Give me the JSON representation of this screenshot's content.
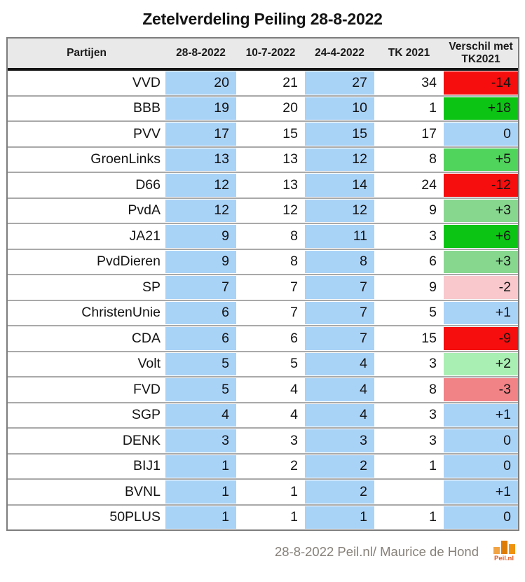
{
  "title": "Zetelverdeling Peiling 28-8-2022",
  "colors": {
    "highlight_blue": "#a9d2f7",
    "header_bg": "#e9e9e9",
    "strong_red": "#f60d0d",
    "strong_green": "#0cc414"
  },
  "table": {
    "headers": [
      "Partijen",
      "28-8-2022",
      "10-7-2022",
      "24-4-2022",
      "TK 2021",
      "Verschil met TK2021"
    ],
    "rows": [
      {
        "party": "VVD",
        "values": [
          "20",
          "21",
          "27",
          "34"
        ],
        "diff": "-14",
        "diff_bg": "#f60d0d"
      },
      {
        "party": "BBB",
        "values": [
          "19",
          "20",
          "10",
          "1"
        ],
        "diff": "+18",
        "diff_bg": "#0cc414"
      },
      {
        "party": "PVV",
        "values": [
          "17",
          "15",
          "15",
          "17"
        ],
        "diff": "0",
        "diff_bg": "#a9d2f7"
      },
      {
        "party": "GroenLinks",
        "values": [
          "13",
          "13",
          "12",
          "8"
        ],
        "diff": "+5",
        "diff_bg": "#50d45c"
      },
      {
        "party": "D66",
        "values": [
          "12",
          "13",
          "14",
          "24"
        ],
        "diff": "-12",
        "diff_bg": "#f60d0d"
      },
      {
        "party": "PvdA",
        "values": [
          "12",
          "12",
          "12",
          "9"
        ],
        "diff": "+3",
        "diff_bg": "#87d78f"
      },
      {
        "party": "JA21",
        "values": [
          "9",
          "8",
          "11",
          "3"
        ],
        "diff": "+6",
        "diff_bg": "#0cc414"
      },
      {
        "party": "PvdDieren",
        "values": [
          "9",
          "8",
          "8",
          "6"
        ],
        "diff": "+3",
        "diff_bg": "#87d78f"
      },
      {
        "party": "SP",
        "values": [
          "7",
          "7",
          "7",
          "9"
        ],
        "diff": "-2",
        "diff_bg": "#f8c8cc"
      },
      {
        "party": "ChristenUnie",
        "values": [
          "6",
          "7",
          "7",
          "5"
        ],
        "diff": "+1",
        "diff_bg": "#a9d2f7"
      },
      {
        "party": "CDA",
        "values": [
          "6",
          "6",
          "7",
          "15"
        ],
        "diff": "-9",
        "diff_bg": "#f60d0d"
      },
      {
        "party": "Volt",
        "values": [
          "5",
          "5",
          "4",
          "3"
        ],
        "diff": "+2",
        "diff_bg": "#a9efb3"
      },
      {
        "party": "FVD",
        "values": [
          "5",
          "4",
          "4",
          "8"
        ],
        "diff": "-3",
        "diff_bg": "#f18286"
      },
      {
        "party": "SGP",
        "values": [
          "4",
          "4",
          "4",
          "3"
        ],
        "diff": "+1",
        "diff_bg": "#a9d2f7"
      },
      {
        "party": "DENK",
        "values": [
          "3",
          "3",
          "3",
          "3"
        ],
        "diff": "0",
        "diff_bg": "#a9d2f7"
      },
      {
        "party": "BIJ1",
        "values": [
          "1",
          "2",
          "2",
          "1"
        ],
        "diff": "0",
        "diff_bg": "#a9d2f7"
      },
      {
        "party": "BVNL",
        "values": [
          "1",
          "1",
          "2",
          ""
        ],
        "diff": "+1",
        "diff_bg": "#a9d2f7"
      },
      {
        "party": "50PLUS",
        "values": [
          "1",
          "1",
          "1",
          "1"
        ],
        "diff": "0",
        "diff_bg": "#a9d2f7"
      }
    ]
  },
  "footer": {
    "credit": "28-8-2022 Peil.nl/ Maurice de Hond",
    "logo_text": "Peil.nl",
    "logo_text_color": "#e2581f",
    "logo_bars": [
      {
        "color": "#f2a445",
        "height": 10
      },
      {
        "color": "#dd7d07",
        "height": 19
      },
      {
        "color": "#ef920e",
        "height": 14
      }
    ]
  }
}
